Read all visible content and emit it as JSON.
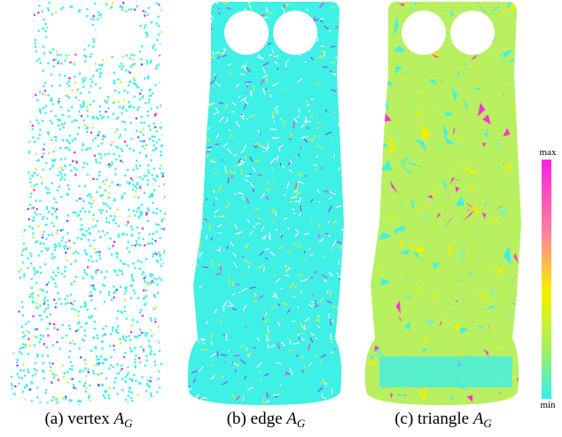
{
  "panels": [
    {
      "label": "(a)",
      "name": "vertex",
      "symbol": "A",
      "subscript": "G"
    },
    {
      "label": "(b)",
      "name": "edge",
      "symbol": "A",
      "subscript": "G"
    },
    {
      "label": "(c)",
      "name": "triangle",
      "symbol": "A",
      "subscript": "G"
    }
  ],
  "colorbar": {
    "max": "max",
    "min": "min"
  }
}
